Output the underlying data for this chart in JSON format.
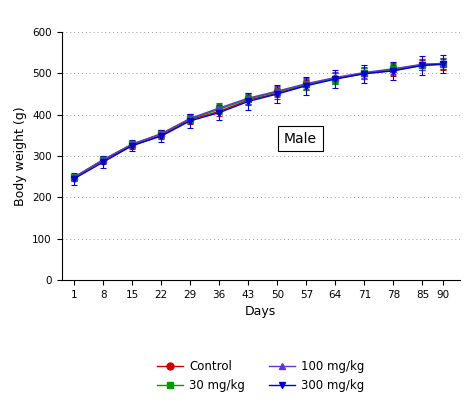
{
  "days": [
    1,
    8,
    15,
    22,
    29,
    36,
    43,
    50,
    57,
    64,
    71,
    78,
    85,
    90
  ],
  "control": {
    "mean": [
      248,
      289,
      325,
      350,
      388,
      408,
      435,
      452,
      472,
      488,
      500,
      507,
      520,
      522
    ],
    "err": [
      8,
      8,
      8,
      10,
      10,
      12,
      12,
      13,
      13,
      13,
      13,
      13,
      13,
      13
    ],
    "color": "#cc0000",
    "marker": "o",
    "label": "Control"
  },
  "mg30": {
    "mean": [
      248,
      291,
      328,
      353,
      390,
      413,
      438,
      455,
      473,
      487,
      500,
      510,
      521,
      523
    ],
    "err": [
      8,
      8,
      8,
      10,
      11,
      12,
      13,
      13,
      13,
      13,
      13,
      13,
      13,
      13
    ],
    "color": "#009900",
    "marker": "s",
    "label": "30 mg/kg"
  },
  "mg100": {
    "mean": [
      249,
      291,
      329,
      354,
      391,
      416,
      440,
      457,
      475,
      490,
      502,
      511,
      522,
      524
    ],
    "err": [
      8,
      8,
      8,
      10,
      11,
      12,
      13,
      13,
      13,
      13,
      13,
      13,
      13,
      13
    ],
    "color": "#6633cc",
    "marker": "^",
    "label": "100 mg/kg"
  },
  "mg300": {
    "mean": [
      245,
      285,
      325,
      348,
      385,
      405,
      432,
      450,
      470,
      486,
      499,
      506,
      519,
      522
    ],
    "err": [
      15,
      15,
      13,
      15,
      17,
      18,
      20,
      22,
      22,
      22,
      22,
      22,
      22,
      22
    ],
    "color": "#0000cc",
    "marker": "v",
    "label": "300 mg/kg"
  },
  "xlabel": "Days",
  "ylabel": "Body weight (g)",
  "ylim": [
    0,
    600
  ],
  "yticks": [
    0,
    100,
    200,
    300,
    400,
    500,
    600
  ],
  "annotation": "Male",
  "background_color": "#ffffff",
  "grid_color": "#999999"
}
